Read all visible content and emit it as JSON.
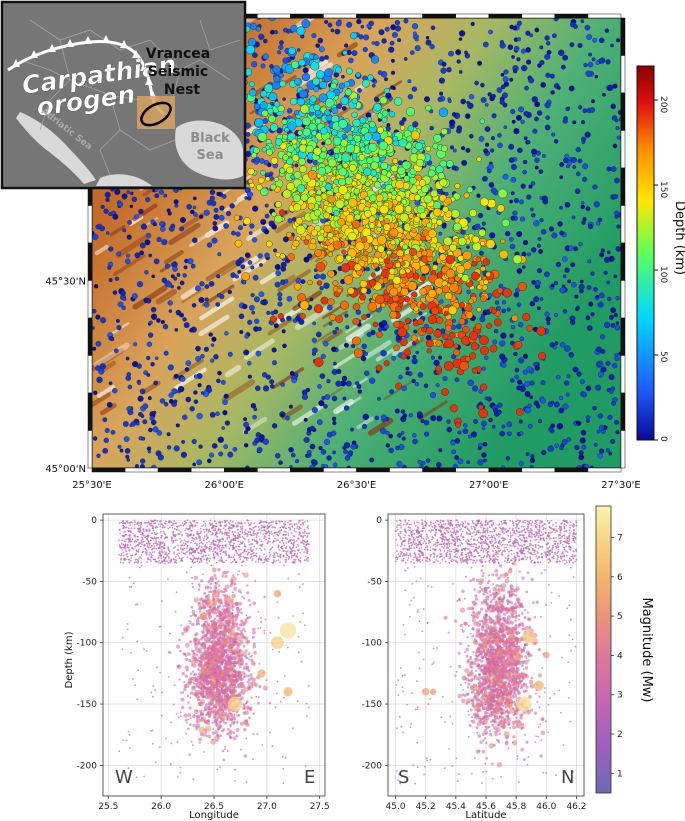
{
  "map": {
    "lat_ticks": [
      {
        "value": 45.5,
        "label": "45°30'N"
      },
      {
        "value": 45.0,
        "label": "45°00'N"
      }
    ],
    "lon_ticks": [
      {
        "value": 25.5,
        "label": "25°30'E"
      },
      {
        "value": 26.0,
        "label": "26°00'E"
      },
      {
        "value": 26.5,
        "label": "26°30'E"
      },
      {
        "value": 27.0,
        "label": "27°00'E"
      },
      {
        "value": 27.5,
        "label": "27°30'E"
      }
    ],
    "lon_range": [
      25.5,
      27.5
    ],
    "lat_range": [
      45.0,
      46.2
    ],
    "colorbar": {
      "title": "Depth (km)",
      "ticks": [
        0,
        50,
        100,
        150,
        200
      ],
      "range": [
        0,
        220
      ],
      "colors": [
        "#0a0a96",
        "#1f5fff",
        "#00d9ff",
        "#5cff5c",
        "#ffe600",
        "#ff8c00",
        "#e01010",
        "#8a0000"
      ]
    },
    "inset": {
      "orogen_label_1": "Carpathian",
      "orogen_label_2": "orogen",
      "nest_label_1": "Vrancea",
      "nest_label_2": "Seismic",
      "nest_label_3": "Nest",
      "adriatic_label": "Adriatic Sea",
      "black_sea_label_1": "Black",
      "black_sea_label_2": "Sea"
    }
  },
  "cross_sections": {
    "depth_ticks": [
      0,
      -50,
      -100,
      -150,
      -200
    ],
    "depth_range": [
      -225,
      5
    ],
    "ylabel": "Depth (km)",
    "longitude": {
      "xlabel": "Longitude",
      "xticks": [
        "25.5",
        "26.0",
        "26.5",
        "27.0",
        "27.5"
      ],
      "xrange": [
        25.45,
        27.55
      ],
      "left_label": "W",
      "right_label": "E"
    },
    "latitude": {
      "xlabel": "Latitude",
      "xticks": [
        "45.0",
        "45.2",
        "45.4",
        "45.6",
        "45.8",
        "46.0",
        "46.2"
      ],
      "xrange": [
        44.95,
        46.25
      ],
      "left_label": "S",
      "right_label": "N"
    },
    "colorbar": {
      "title": "Magnitude (Mw)",
      "ticks": [
        1,
        2,
        3,
        4,
        5,
        6,
        7
      ],
      "range": [
        0.5,
        7.8
      ],
      "colors": [
        "#6a6ab8",
        "#9a5fc0",
        "#c064b5",
        "#dd73a0",
        "#ec8f7c",
        "#f4b56a",
        "#f9d98a",
        "#fbf3b0"
      ]
    }
  }
}
